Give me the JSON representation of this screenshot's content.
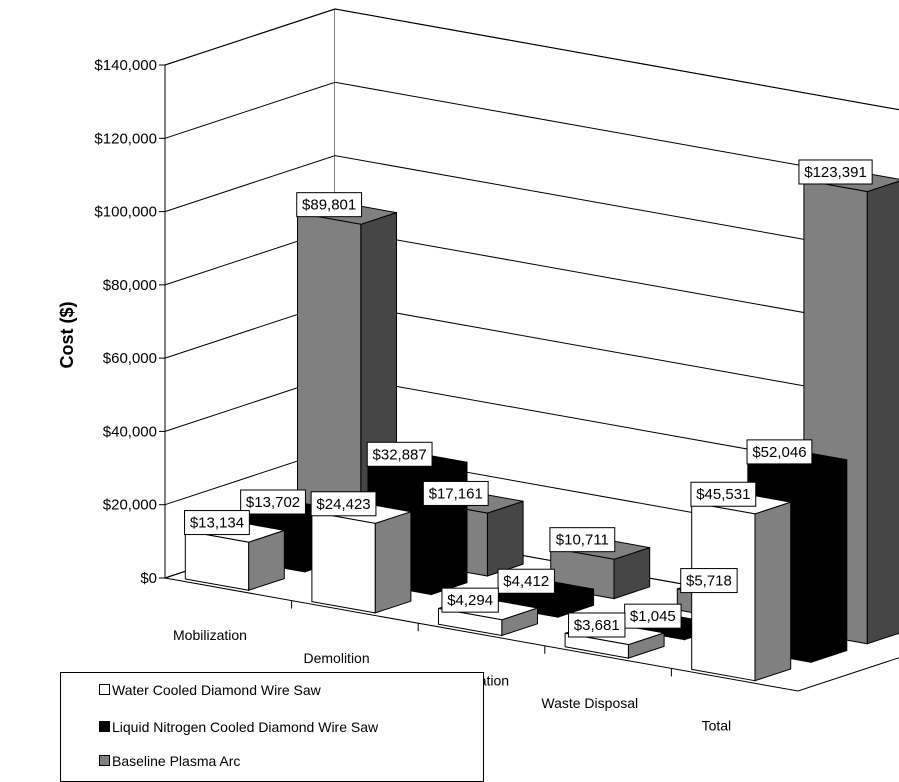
{
  "chart_data": {
    "type": "bar",
    "subtype": "3d-clustered-column",
    "categories": [
      "Mobilization",
      "Demolition",
      "Demobilization",
      "Waste Disposal",
      "Total"
    ],
    "series": [
      {
        "name": "Water Cooled Diamond Wire Saw",
        "color": "#ffffff",
        "values": [
          13134,
          24423,
          4294,
          3681,
          45531
        ],
        "labels": [
          "$13,134",
          "$24,423",
          "$4,294",
          "$3,681",
          "$45,531"
        ]
      },
      {
        "name": "Liquid Nitrogen Cooled Diamond Wire Saw",
        "color": "#000000",
        "values": [
          13702,
          32887,
          4412,
          1045,
          52046
        ],
        "labels": [
          "$13,702",
          "$32,887",
          "$4,412",
          "$1,045",
          "$52,046"
        ]
      },
      {
        "name": "Baseline Plasma Arc",
        "color": "#808080",
        "values": [
          89801,
          17161,
          10711,
          5718,
          123391
        ],
        "labels": [
          "$89,801",
          "$17,161",
          "$10,711",
          "$5,718",
          "$123,391"
        ]
      }
    ],
    "ylabel": "Cost ($)",
    "ylim": [
      0,
      140000
    ],
    "yticks": [
      "$0",
      "$20,000",
      "$40,000",
      "$60,000",
      "$80,000",
      "$100,000",
      "$120,000",
      "$140,000"
    ],
    "grid": true,
    "legend_position": "bottom-left"
  }
}
